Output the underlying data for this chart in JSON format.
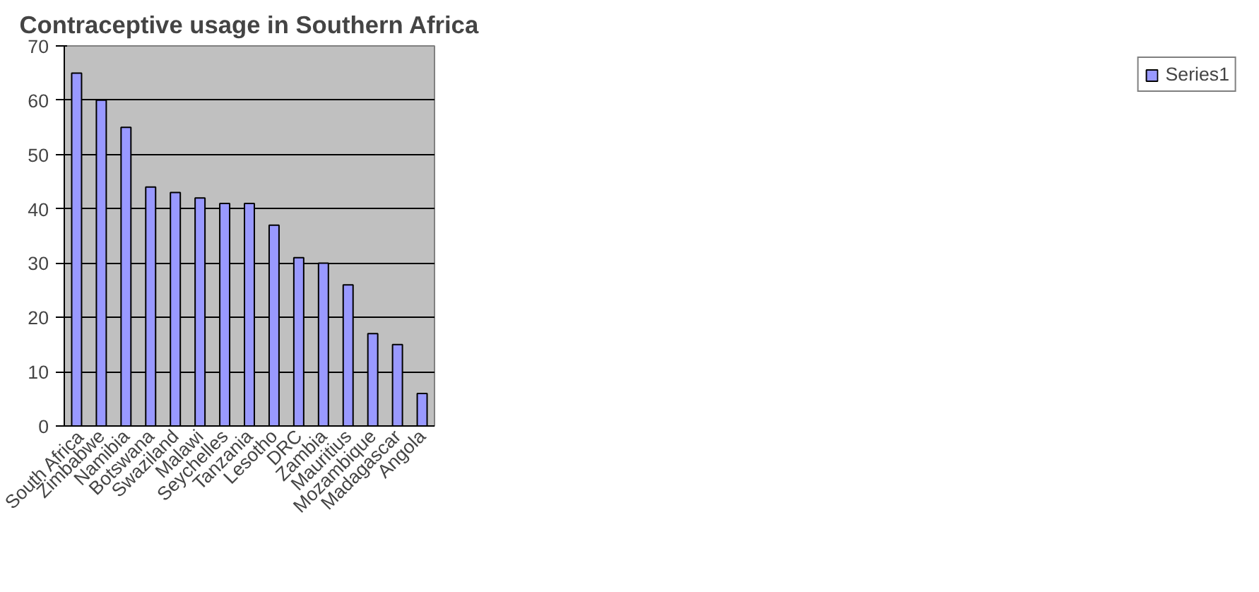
{
  "chart_data": {
    "type": "bar",
    "title": "Contraceptive usage in Southern Africa",
    "categories": [
      "South Africa",
      "Zimbabwe",
      "Namibia",
      "Botswana",
      "Swaziland",
      "Malawi",
      "Seychelles",
      "Tanzania",
      "Lesotho",
      "DRC",
      "Zambia",
      "Mauritius",
      "Mozambique",
      "Madagascar",
      "Angola"
    ],
    "series": [
      {
        "name": "Series1",
        "color": "#9999ff",
        "values": [
          65,
          60,
          55,
          44,
          43,
          42,
          41,
          41,
          37,
          31,
          30,
          26,
          17,
          15,
          6
        ]
      }
    ],
    "ylim": [
      0,
      70
    ],
    "yticks": [
      0,
      10,
      20,
      30,
      40,
      50,
      60,
      70
    ],
    "grid": "y",
    "legend": "right"
  }
}
